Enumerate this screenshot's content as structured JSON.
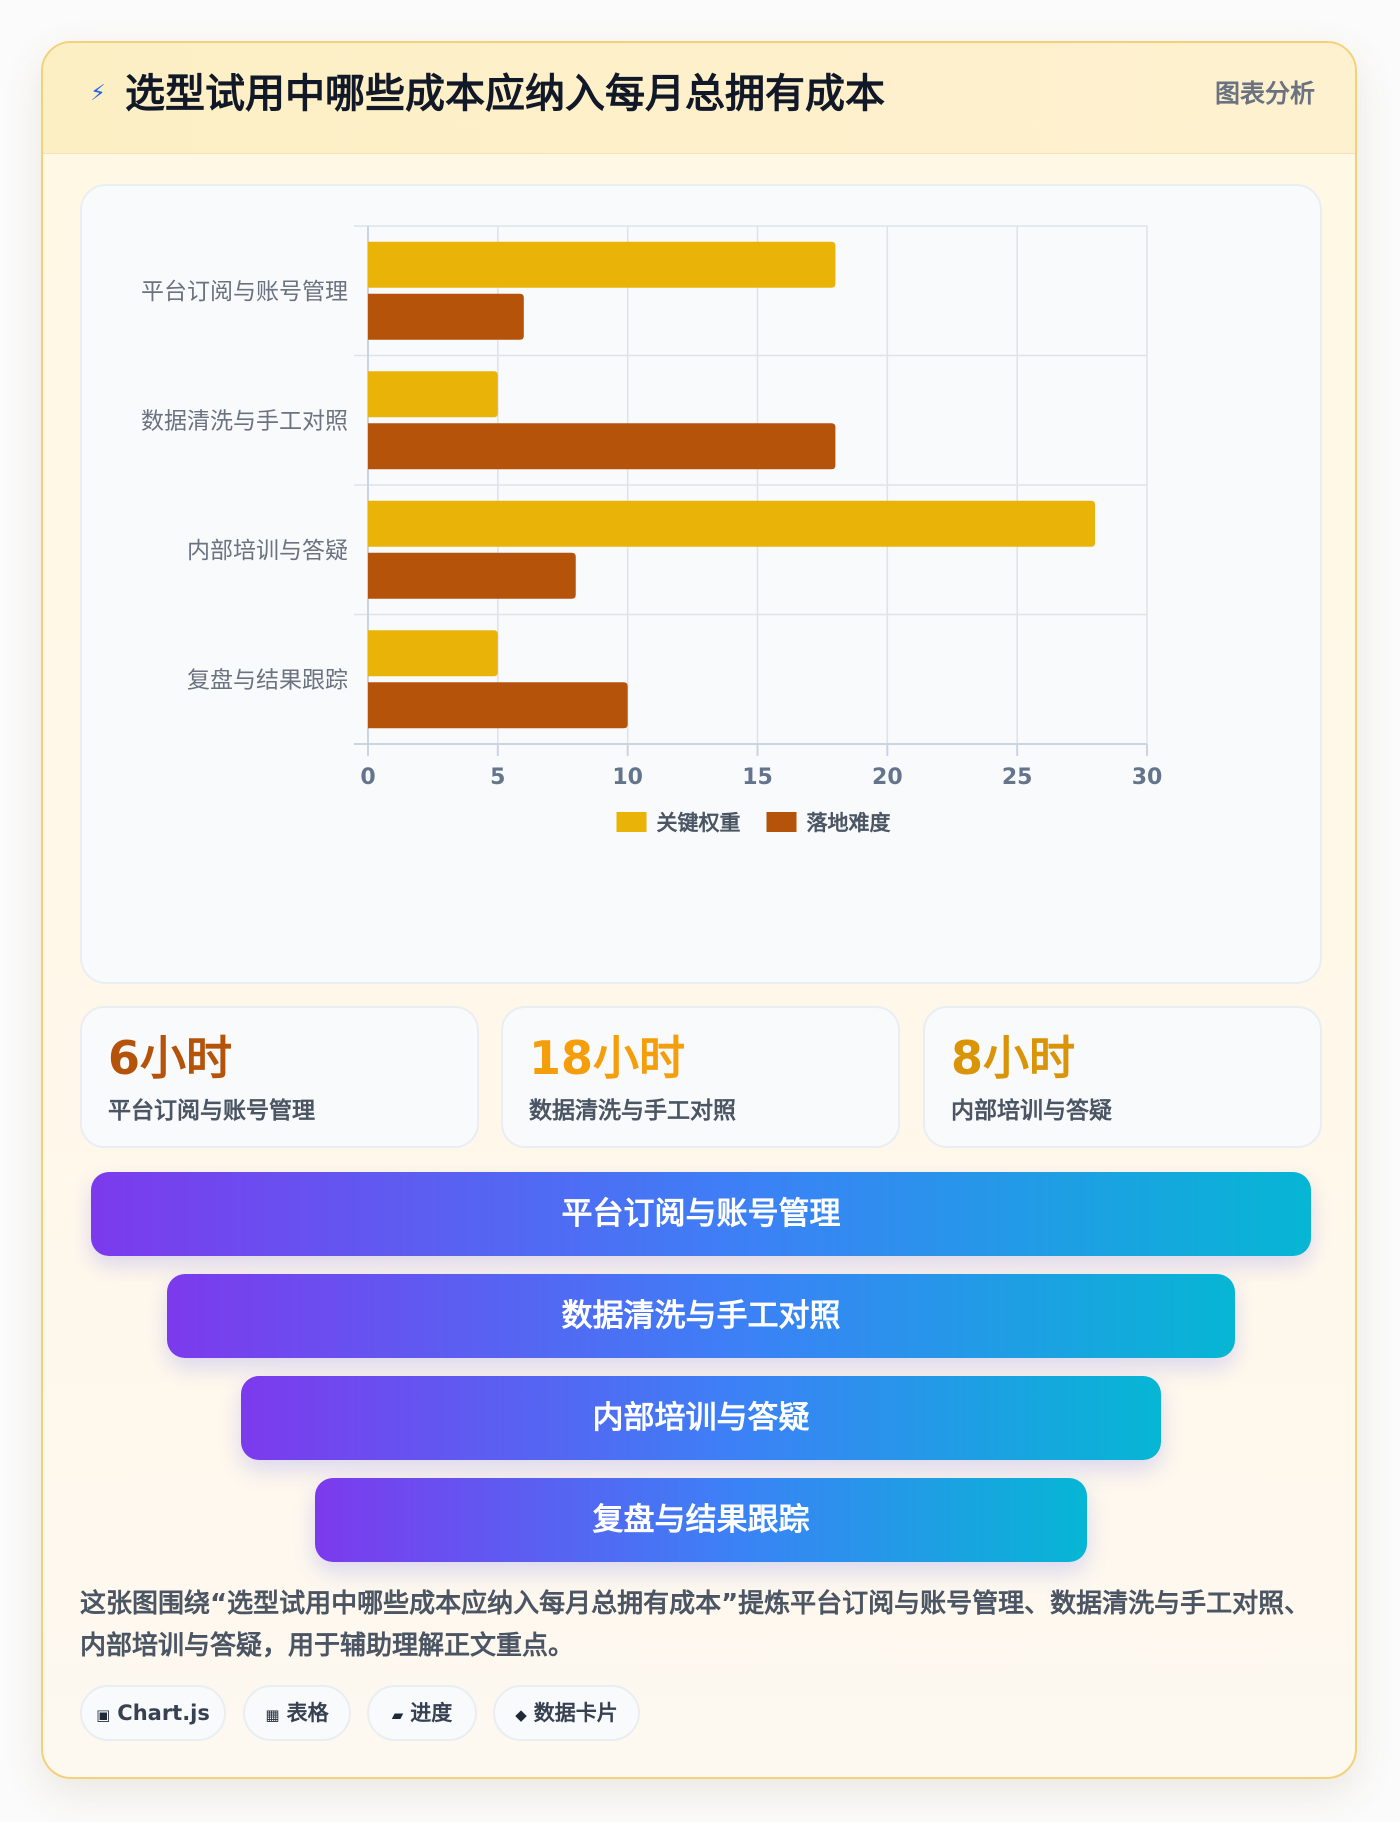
{
  "header": {
    "icon": "lightning-icon",
    "icon_glyph": "⚡",
    "title": "选型试用中哪些成本应纳入每月总拥有成本",
    "tag": "图表分析"
  },
  "chart_data": {
    "type": "bar",
    "orientation": "horizontal",
    "categories": [
      "平台订阅与账号管理",
      "数据清洗与手工对照",
      "内部培训与答疑",
      "复盘与结果跟踪"
    ],
    "series": [
      {
        "name": "关键权重",
        "color": "#eab308",
        "values": [
          18,
          5,
          28,
          5
        ]
      },
      {
        "name": "落地难度",
        "color": "#b45309",
        "values": [
          6,
          18,
          8,
          10
        ]
      }
    ],
    "xlim": [
      0,
      30
    ],
    "x_ticks": [
      0,
      5,
      10,
      15,
      20,
      25,
      30
    ],
    "grid": true,
    "legend": "bottom",
    "title": "",
    "xlabel": "",
    "ylabel": ""
  },
  "kpis": [
    {
      "value": "6小时",
      "label": "平台订阅与账号管理",
      "color": "#b45309"
    },
    {
      "value": "18小时",
      "label": "数据清洗与手工对照",
      "color": "#f59e0b"
    },
    {
      "value": "8小时",
      "label": "内部培训与答疑",
      "color": "#d99407"
    }
  ],
  "funnel": [
    "平台订阅与账号管理",
    "数据清洗与手工对照",
    "内部培训与答疑",
    "复盘与结果跟踪"
  ],
  "summary": "这张图围绕“选型试用中哪些成本应纳入每月总拥有成本”提炼平台订阅与账号管理、数据清洗与手工对照、内部培训与答疑，用于辅助理解正文重点。",
  "chips": [
    {
      "icon": "chart-icon",
      "glyph": "▣",
      "label": "Chart.js"
    },
    {
      "icon": "table-icon",
      "glyph": "▦",
      "label": "表格"
    },
    {
      "icon": "progress-icon",
      "glyph": "▰",
      "label": "进度"
    },
    {
      "icon": "data-card-icon",
      "glyph": "◆",
      "label": "数据卡片"
    }
  ]
}
